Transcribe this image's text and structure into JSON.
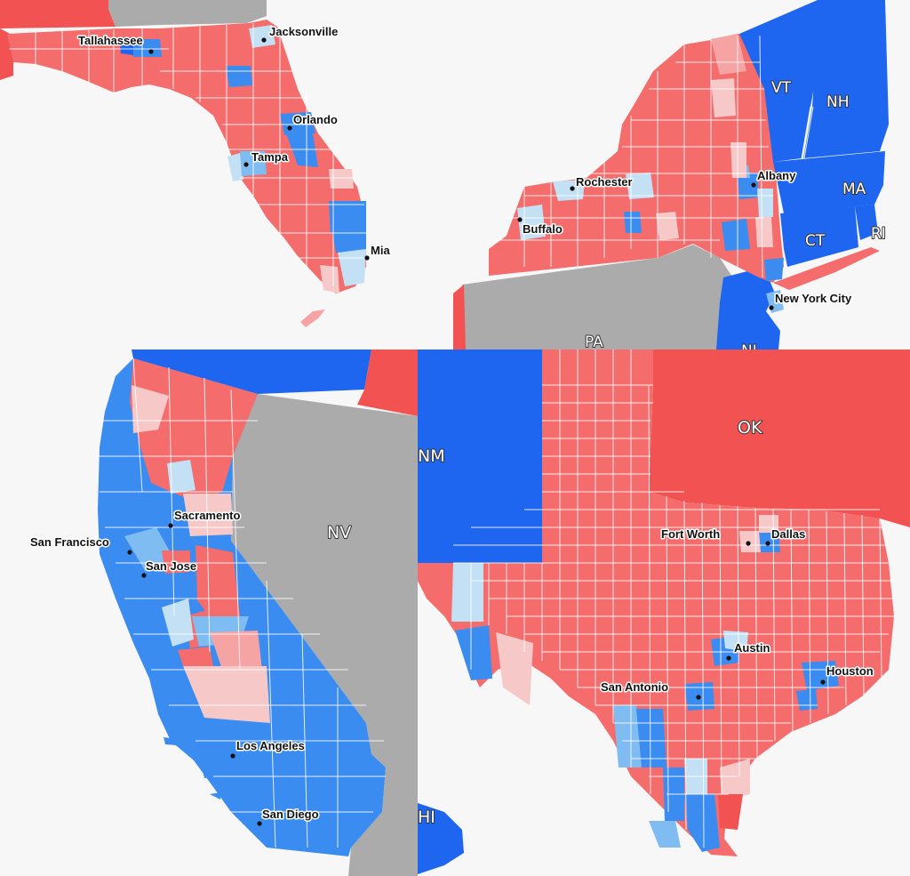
{
  "colors": {
    "strong_red": "#f25252",
    "red": "#f46c6c",
    "light_red": "#f6a3a3",
    "pale_red": "#f7c8c8",
    "pale_blue": "#c3e0f5",
    "light_blue": "#7fbcf2",
    "blue": "#3a8cf0",
    "strong_blue": "#1e66f0",
    "gray": "#ababab",
    "background": "#f7f7f7"
  },
  "panels": {
    "florida": {
      "cities": {
        "tallahassee": "Tallahassee",
        "jacksonville": "Jacksonville",
        "orlando": "Orlando",
        "tampa": "Tampa",
        "miami": "Mia"
      }
    },
    "new_york": {
      "cities": {
        "rochester": "Rochester",
        "albany": "Albany",
        "buffalo": "Buffalo",
        "nyc": "New York City"
      },
      "states": {
        "vt": "VT",
        "nh": "NH",
        "ma": "MA",
        "ct": "CT",
        "ri": "RI",
        "pa": "PA",
        "nj": "NJ"
      }
    },
    "california": {
      "cities": {
        "sacramento": "Sacramento",
        "san_francisco": "San Francisco",
        "san_jose": "San Jose",
        "los_angeles": "Los Angeles",
        "san_diego": "San Diego"
      },
      "states": {
        "nv": "NV"
      }
    },
    "texas": {
      "cities": {
        "fort_worth": "Fort Worth",
        "dallas": "Dallas",
        "austin": "Austin",
        "san_antonio": "San Antonio",
        "houston": "Houston"
      },
      "states": {
        "ok": "OK",
        "nm": "NM",
        "hi": "HI"
      }
    }
  }
}
